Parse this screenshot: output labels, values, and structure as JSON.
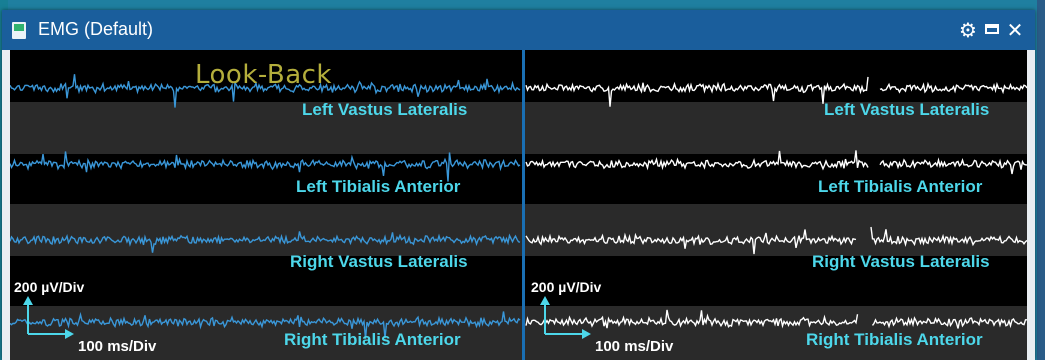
{
  "window": {
    "title": "EMG (Default)",
    "icons": [
      "app-icon",
      "gear-icon",
      "maximize-icon",
      "close-icon"
    ],
    "close_glyph": "✕",
    "gear_glyph": "⚙"
  },
  "lookback_label": "Look-Back",
  "left_panel": {
    "channels": [
      "Left Vastus Lateralis",
      "Left Tibialis Anterior",
      "Right Vastus Lateralis",
      "Right Tibialis Anterior"
    ],
    "trace_color": "#3a97d8",
    "amplitude_scale": "200 µV/Div",
    "time_scale": "100 ms/Div"
  },
  "right_panel": {
    "channels": [
      "Left Vastus Lateralis",
      "Left Tibialis Anterior",
      "Right Vastus Lateralis",
      "Right Tibialis Anterior"
    ],
    "trace_color": "#ffffff",
    "amplitude_scale": "200 µV/Div",
    "time_scale": "100 ms/Div"
  },
  "colors": {
    "titlebar": "#1a5e9c",
    "label": "#4dd7ea",
    "lookback": "#b4ae3c",
    "divider": "#1a6fb3"
  }
}
